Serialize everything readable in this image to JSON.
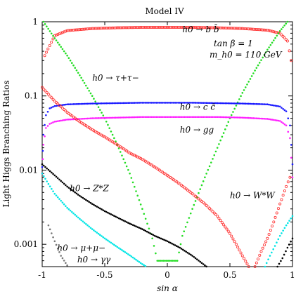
{
  "chart_data": {
    "type": "scatter",
    "title": "Model IV",
    "xlabel": "sin α",
    "ylabel": "Light Higgs Branching Ratios",
    "xlim": [
      -1,
      1
    ],
    "ylim": [
      0.0005,
      1
    ],
    "yscale": "log",
    "grid": false,
    "xticks": [
      -1,
      -0.5,
      0,
      0.5,
      1
    ],
    "xtick_labels": [
      "-1",
      "-0.5",
      "0",
      "0.5",
      "1"
    ],
    "yticks": [
      0.001,
      0.01,
      0.1,
      1
    ],
    "ytick_labels": [
      "0.001",
      "0.01",
      "0.1",
      "1"
    ],
    "annotations": [
      "tan β = 1",
      "m_h0 = 110 GeV"
    ],
    "series": [
      {
        "name": "h0 → b b̄",
        "color": "#ff3030",
        "marker": "open-circle",
        "x": [
          -0.98,
          -0.9,
          -0.8,
          -0.6,
          -0.4,
          -0.2,
          0.0,
          0.2,
          0.4,
          0.6,
          0.8,
          0.9,
          0.96,
          0.99
        ],
        "y": [
          0.35,
          0.65,
          0.76,
          0.81,
          0.83,
          0.84,
          0.84,
          0.84,
          0.83,
          0.81,
          0.77,
          0.7,
          0.55,
          0.3
        ]
      },
      {
        "name": "h0 → τ+τ−",
        "color": "#22dd22",
        "marker": "dot",
        "x": [
          -0.99,
          -0.9,
          -0.8,
          -0.7,
          -0.6,
          -0.5,
          -0.4,
          -0.3,
          -0.2,
          -0.12,
          -0.08,
          0.08,
          0.12,
          0.2,
          0.3,
          0.4,
          0.5,
          0.6,
          0.7,
          0.8,
          0.9,
          0.96
        ],
        "y": [
          1.0,
          0.6,
          0.35,
          0.19,
          0.1,
          0.05,
          0.022,
          0.009,
          0.003,
          0.0012,
          0.0006,
          0.0006,
          0.0013,
          0.003,
          0.008,
          0.02,
          0.05,
          0.11,
          0.22,
          0.42,
          0.75,
          1.0
        ]
      },
      {
        "name": "h0 → c c̄",
        "color": "#1a1aff",
        "marker": "dot",
        "x": [
          -1.0,
          -0.99,
          -0.97,
          -0.94,
          -0.9,
          -0.8,
          -0.6,
          -0.4,
          -0.2,
          0.0,
          0.2,
          0.4,
          0.6,
          0.8,
          0.9,
          0.95,
          0.98,
          1.0
        ],
        "y": [
          0.011,
          0.03,
          0.055,
          0.068,
          0.073,
          0.077,
          0.079,
          0.08,
          0.081,
          0.081,
          0.081,
          0.08,
          0.079,
          0.077,
          0.072,
          0.062,
          0.04,
          0.012
        ]
      },
      {
        "name": "h0 → gg",
        "color": "#ff20ff",
        "marker": "dot",
        "x": [
          -1.0,
          -0.99,
          -0.97,
          -0.94,
          -0.9,
          -0.8,
          -0.6,
          -0.4,
          -0.2,
          0.0,
          0.2,
          0.4,
          0.6,
          0.8,
          0.9,
          0.95,
          0.98,
          1.0
        ],
        "y": [
          0.009,
          0.022,
          0.037,
          0.042,
          0.045,
          0.048,
          0.05,
          0.051,
          0.052,
          0.052,
          0.052,
          0.052,
          0.051,
          0.049,
          0.046,
          0.04,
          0.027,
          0.008
        ]
      },
      {
        "name": "h0 → W*W",
        "color": "#ff3030",
        "marker": "open-circle",
        "x": [
          -1.0,
          -0.9,
          -0.8,
          -0.7,
          -0.6,
          -0.5,
          -0.4,
          -0.3,
          -0.2,
          -0.1,
          0.0,
          0.1,
          0.2,
          0.3,
          0.4,
          0.5,
          0.55,
          0.6,
          0.65,
          0.7,
          0.72
        ],
        "y": [
          0.13,
          0.085,
          0.06,
          0.045,
          0.035,
          0.028,
          0.022,
          0.017,
          0.014,
          0.011,
          0.0085,
          0.0065,
          0.0048,
          0.0035,
          0.0024,
          0.0014,
          0.001,
          0.0007,
          0.0005,
          0.0004,
          0.00035
        ]
      },
      {
        "name": "h0 → Z*Z",
        "color": "#000000",
        "marker": "dot",
        "x": [
          -1.0,
          -0.9,
          -0.8,
          -0.7,
          -0.6,
          -0.5,
          -0.4,
          -0.3,
          -0.2,
          -0.1,
          0.0,
          0.1,
          0.2,
          0.3,
          0.35
        ],
        "y": [
          0.012,
          0.0085,
          0.006,
          0.0045,
          0.0035,
          0.0028,
          0.0023,
          0.0019,
          0.0016,
          0.0013,
          0.0011,
          0.0009,
          0.0007,
          0.00052,
          0.00045
        ]
      },
      {
        "name": "h0 → γγ",
        "color": "#00e5e5",
        "marker": "dot",
        "x": [
          -1.0,
          -0.95,
          -0.9,
          -0.8,
          -0.7,
          -0.6,
          -0.5,
          -0.4,
          -0.3,
          -0.2,
          -0.15
        ],
        "y": [
          0.009,
          0.0065,
          0.0048,
          0.0031,
          0.0022,
          0.0016,
          0.0012,
          0.00092,
          0.00071,
          0.00054,
          0.00048
        ]
      },
      {
        "name": "h0 → μ+μ−",
        "color": "#777777",
        "marker": "dot",
        "x": [
          -0.95,
          -0.9,
          -0.85,
          -0.8,
          -0.78
        ],
        "y": [
          0.0018,
          0.0011,
          0.0007,
          0.00052,
          0.00046
        ]
      },
      {
        "name": "h0 → μ+μ− (rise)",
        "color": "#ff3030",
        "marker": "open-circle",
        "x": [
          0.7,
          0.75,
          0.8,
          0.85,
          0.9,
          0.95,
          0.98
        ],
        "y": [
          0.0005,
          0.0008,
          0.0012,
          0.002,
          0.0035,
          0.006,
          0.008
        ]
      },
      {
        "name": "h0 → γγ (rise)",
        "color": "#00e5e5",
        "marker": "dot",
        "x": [
          0.78,
          0.82,
          0.86,
          0.9,
          0.95,
          1.0
        ],
        "y": [
          0.0005,
          0.0007,
          0.00095,
          0.0013,
          0.0018,
          0.0024
        ]
      },
      {
        "name": "h0 → Z*Z (rise)",
        "color": "#000000",
        "marker": "dot",
        "x": [
          0.88,
          0.92,
          0.96,
          1.0
        ],
        "y": [
          0.0005,
          0.00065,
          0.0009,
          0.0012
        ]
      }
    ],
    "labels": [
      {
        "text": "h0 → b b̄",
        "x": 0.12,
        "y": 0.72
      },
      {
        "text": "h0 → τ+τ−",
        "x": -0.6,
        "y": 0.16
      },
      {
        "text": "h0 → c c̄",
        "x": 0.1,
        "y": 0.065
      },
      {
        "text": "h0 → gg",
        "x": 0.1,
        "y": 0.032
      },
      {
        "text": "h0 → Z*Z",
        "x": -0.78,
        "y": 0.0052
      },
      {
        "text": "h0 → W*W",
        "x": 0.5,
        "y": 0.0042
      },
      {
        "text": "h0 → μ+μ−",
        "x": -0.88,
        "y": 0.00082
      },
      {
        "text": "h0 → γγ",
        "x": -0.72,
        "y": 0.00057
      }
    ]
  }
}
